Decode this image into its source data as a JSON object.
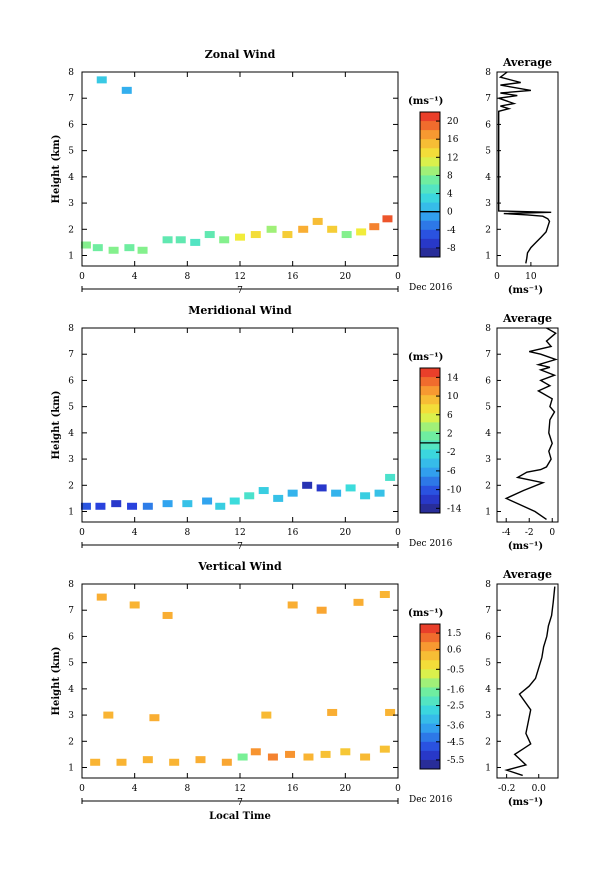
{
  "chart_data": [
    {
      "type": "heatmap",
      "title": "Zonal Wind",
      "ylabel": "Height (km)",
      "xlabel": "",
      "x_range": [
        0,
        24
      ],
      "y_range": [
        0.6,
        8
      ],
      "x_ticks": [
        "0",
        "4",
        "8",
        "12",
        "16",
        "20",
        "0"
      ],
      "y_ticks": [
        "1",
        "2",
        "3",
        "4",
        "5",
        "6",
        "7",
        "8"
      ],
      "day_label": "7",
      "date_label": "Dec 2016",
      "colorbar": {
        "unit": "(ms⁻¹)",
        "range": [
          -10,
          22
        ],
        "ticks": [
          "20",
          "16",
          "12",
          "8",
          "4",
          "0",
          "-4",
          "-8"
        ],
        "tick_values": [
          20,
          16,
          12,
          8,
          4,
          0,
          -4,
          -8
        ],
        "zero_line": 0
      },
      "profile": {
        "title": "Average",
        "xlabel": "(ms⁻¹)",
        "x_ticks": [
          "0",
          "10"
        ],
        "x_tick_values": [
          0,
          10
        ],
        "x_range": [
          0,
          18
        ],
        "x": [
          8.5,
          8.8,
          9.0,
          10.0,
          11.5,
          13.0,
          14.5,
          15.0,
          15.5,
          15.0,
          13.5,
          9.0,
          2.0,
          16.0,
          0.5,
          0.5,
          3.5,
          1.0,
          5.0,
          0.5,
          6.0,
          1.0,
          10.0,
          1.0,
          7.0,
          1.0,
          3.0
        ],
        "y": [
          0.7,
          0.9,
          1.1,
          1.3,
          1.5,
          1.7,
          1.9,
          2.1,
          2.3,
          2.4,
          2.5,
          2.55,
          2.6,
          2.65,
          2.7,
          6.5,
          6.6,
          6.7,
          6.8,
          7.0,
          7.1,
          7.2,
          7.3,
          7.5,
          7.6,
          7.8,
          8.0
        ]
      },
      "cells": [
        [
          0.3,
          1.4,
          8
        ],
        [
          1.2,
          1.3,
          7
        ],
        [
          2.4,
          1.2,
          8
        ],
        [
          3.6,
          1.3,
          7
        ],
        [
          4.6,
          1.2,
          8
        ],
        [
          6.5,
          1.6,
          6
        ],
        [
          7.5,
          1.6,
          6
        ],
        [
          8.6,
          1.5,
          5
        ],
        [
          9.7,
          1.8,
          6
        ],
        [
          10.8,
          1.6,
          8
        ],
        [
          12.0,
          1.7,
          12
        ],
        [
          13.2,
          1.8,
          13
        ],
        [
          14.4,
          2.0,
          9
        ],
        [
          15.6,
          1.8,
          14
        ],
        [
          16.8,
          2.0,
          16
        ],
        [
          17.9,
          2.3,
          15
        ],
        [
          19.0,
          2.0,
          14
        ],
        [
          20.1,
          1.8,
          8
        ],
        [
          21.2,
          1.9,
          12
        ],
        [
          22.2,
          2.1,
          18
        ],
        [
          23.2,
          2.4,
          20
        ],
        [
          1.5,
          7.7,
          2
        ],
        [
          3.4,
          7.3,
          0
        ]
      ]
    },
    {
      "type": "heatmap",
      "title": "Meridional Wind",
      "ylabel": "Height (km)",
      "xlabel": "",
      "x_range": [
        0,
        24
      ],
      "y_range": [
        0.6,
        8
      ],
      "x_ticks": [
        "0",
        "4",
        "8",
        "12",
        "16",
        "20",
        "0"
      ],
      "y_ticks": [
        "1",
        "2",
        "3",
        "4",
        "5",
        "6",
        "7",
        "8"
      ],
      "day_label": "7",
      "date_label": "Dec 2016",
      "colorbar": {
        "unit": "(ms⁻¹)",
        "range": [
          -15,
          16
        ],
        "ticks": [
          "14",
          "10",
          "6",
          "2",
          "-2",
          "-6",
          "-10",
          "-14"
        ],
        "tick_values": [
          14,
          10,
          6,
          2,
          -2,
          -6,
          -10,
          -14
        ],
        "zero_line": 0
      },
      "profile": {
        "title": "Average",
        "xlabel": "(ms⁻¹)",
        "x_ticks": [
          "-4",
          "-2",
          "0"
        ],
        "x_tick_values": [
          -4,
          -2,
          0
        ],
        "x_range": [
          -4.8,
          0.5
        ],
        "x": [
          -0.5,
          -1.5,
          -3.0,
          -4.0,
          -2.5,
          -0.8,
          -3.0,
          -2.2,
          -1.0,
          -0.5,
          -0.1,
          -0.3,
          0.0,
          -0.3,
          -0.2,
          0.2,
          -0.2,
          0.0,
          -1.2,
          -0.2,
          -1.0,
          0.2,
          -1.0,
          -0.2,
          -1.2,
          0.3,
          -1.0,
          -2.0,
          -0.1,
          -0.5,
          0.3,
          -0.5
        ],
        "y": [
          0.7,
          1.0,
          1.3,
          1.5,
          1.8,
          2.1,
          2.3,
          2.5,
          2.6,
          2.7,
          3.0,
          3.3,
          3.6,
          4.0,
          4.5,
          4.8,
          5.0,
          5.3,
          5.6,
          5.8,
          6.0,
          6.2,
          6.4,
          6.5,
          6.6,
          6.8,
          7.0,
          7.1,
          7.3,
          7.5,
          7.8,
          8.0
        ]
      },
      "cells": [
        [
          0.3,
          1.2,
          -10
        ],
        [
          1.4,
          1.2,
          -11
        ],
        [
          2.6,
          1.3,
          -12
        ],
        [
          3.8,
          1.2,
          -11
        ],
        [
          5.0,
          1.2,
          -8
        ],
        [
          6.5,
          1.3,
          -6
        ],
        [
          8.0,
          1.3,
          -4
        ],
        [
          9.5,
          1.4,
          -6
        ],
        [
          10.5,
          1.2,
          -3
        ],
        [
          11.6,
          1.4,
          -2
        ],
        [
          12.7,
          1.6,
          -1
        ],
        [
          13.8,
          1.8,
          -3
        ],
        [
          14.9,
          1.5,
          -4
        ],
        [
          16.0,
          1.7,
          -5
        ],
        [
          17.1,
          2.0,
          -13
        ],
        [
          18.2,
          1.9,
          -12
        ],
        [
          19.3,
          1.7,
          -5
        ],
        [
          20.4,
          1.9,
          -2
        ],
        [
          21.5,
          1.6,
          -3
        ],
        [
          22.6,
          1.7,
          -4
        ],
        [
          23.4,
          2.3,
          -1
        ]
      ]
    },
    {
      "type": "heatmap",
      "title": "Vertical Wind",
      "ylabel": "Height (km)",
      "xlabel": "Local Time",
      "x_range": [
        0,
        24
      ],
      "y_range": [
        0.6,
        8
      ],
      "x_ticks": [
        "0",
        "4",
        "8",
        "12",
        "16",
        "20",
        "0"
      ],
      "y_ticks": [
        "1",
        "2",
        "3",
        "4",
        "5",
        "6",
        "7",
        "8"
      ],
      "day_label": "7",
      "date_label": "Dec 2016",
      "colorbar": {
        "unit": "(ms⁻¹)",
        "range": [
          -6,
          2
        ],
        "ticks": [
          "1.5",
          "0.6",
          "-0.5",
          "-1.6",
          "-2.5",
          "-3.6",
          "-4.5",
          "-5.5"
        ],
        "tick_values": [
          1.5,
          0.6,
          -0.5,
          -1.6,
          -2.5,
          -3.6,
          -4.5,
          -5.5
        ]
      },
      "profile": {
        "title": "Average",
        "xlabel": "(ms⁻¹)",
        "x_ticks": [
          "-0.2",
          "0.0"
        ],
        "x_tick_values": [
          -0.2,
          0.0
        ],
        "x_range": [
          -0.26,
          0.12
        ],
        "x": [
          -0.1,
          -0.2,
          -0.08,
          -0.15,
          -0.1,
          -0.05,
          -0.08,
          -0.07,
          -0.05,
          -0.12,
          -0.06,
          -0.02,
          0.0,
          0.02,
          0.03,
          0.05,
          0.06,
          0.08,
          0.09,
          0.1
        ],
        "y": [
          0.7,
          0.9,
          1.1,
          1.5,
          1.7,
          1.9,
          2.3,
          2.6,
          3.2,
          3.8,
          4.1,
          4.4,
          4.8,
          5.2,
          5.6,
          6.0,
          6.4,
          6.8,
          7.3,
          7.9
        ]
      },
      "cells": [
        [
          1.0,
          1.2,
          0.4
        ],
        [
          3.0,
          1.2,
          0.4
        ],
        [
          5.0,
          1.3,
          0.4
        ],
        [
          7.0,
          1.2,
          0.4
        ],
        [
          9.0,
          1.3,
          0.5
        ],
        [
          11.0,
          1.2,
          0.6
        ],
        [
          12.2,
          1.4,
          -1.6
        ],
        [
          13.2,
          1.6,
          0.8
        ],
        [
          14.5,
          1.4,
          1.0
        ],
        [
          15.8,
          1.5,
          0.8
        ],
        [
          17.2,
          1.4,
          0.4
        ],
        [
          18.5,
          1.5,
          0.2
        ],
        [
          20.0,
          1.6,
          0.1
        ],
        [
          21.5,
          1.4,
          0.3
        ],
        [
          23.0,
          1.7,
          0.2
        ],
        [
          1.5,
          7.5,
          0.5
        ],
        [
          4.0,
          7.2,
          0.4
        ],
        [
          6.5,
          6.8,
          0.5
        ],
        [
          16.0,
          7.2,
          0.5
        ],
        [
          18.2,
          7.0,
          0.6
        ],
        [
          21.0,
          7.3,
          0.5
        ],
        [
          23.0,
          7.6,
          0.4
        ],
        [
          2.0,
          3.0,
          0.4
        ],
        [
          5.5,
          2.9,
          0.5
        ],
        [
          14.0,
          3.0,
          0.3
        ],
        [
          19.0,
          3.1,
          0.5
        ],
        [
          23.4,
          3.1,
          0.4
        ]
      ]
    }
  ]
}
